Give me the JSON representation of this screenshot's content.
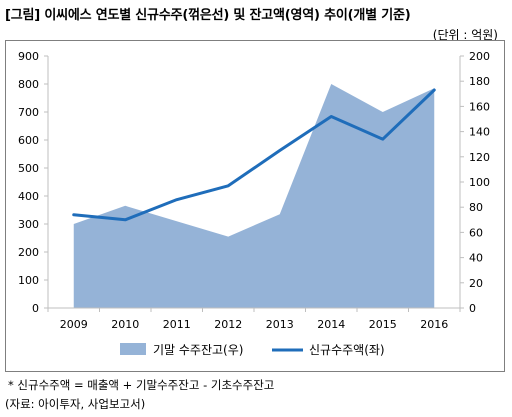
{
  "title": "[그림] 이씨에스 연도별 신규수주(꺾은선) 및 잔고액(영역) 추이(개별 기준)",
  "unit": "(단위 : 억원)",
  "note": "* 신규수주액 = 매출액 + 기말수주잔고 - 기초수주잔고",
  "source": "(자료: 아이투자, 사업보고서)",
  "colors": {
    "area": "#95b3d7",
    "line": "#1f6dba",
    "axis": "#bfbfbf"
  },
  "chart_data": {
    "type": "area",
    "categories": [
      "2009",
      "2010",
      "2011",
      "2012",
      "2013",
      "2014",
      "2015",
      "2016"
    ],
    "series": [
      {
        "name": "기말 수주잔고(우)",
        "axis": "left",
        "type": "area",
        "values": [
          300,
          365,
          310,
          255,
          335,
          800,
          700,
          785
        ]
      },
      {
        "name": "신규수주액(좌)",
        "axis": "right",
        "type": "line",
        "values": [
          74,
          70,
          86,
          97,
          125,
          152,
          134,
          173
        ]
      }
    ],
    "ylim_left": [
      0,
      900
    ],
    "yticks_left": [
      0,
      100,
      200,
      300,
      400,
      500,
      600,
      700,
      800,
      900
    ],
    "ylim_right": [
      0,
      200
    ],
    "yticks_right": [
      0,
      20,
      40,
      60,
      80,
      100,
      120,
      140,
      160,
      180,
      200
    ],
    "legend_position": "bottom",
    "grid": false
  }
}
